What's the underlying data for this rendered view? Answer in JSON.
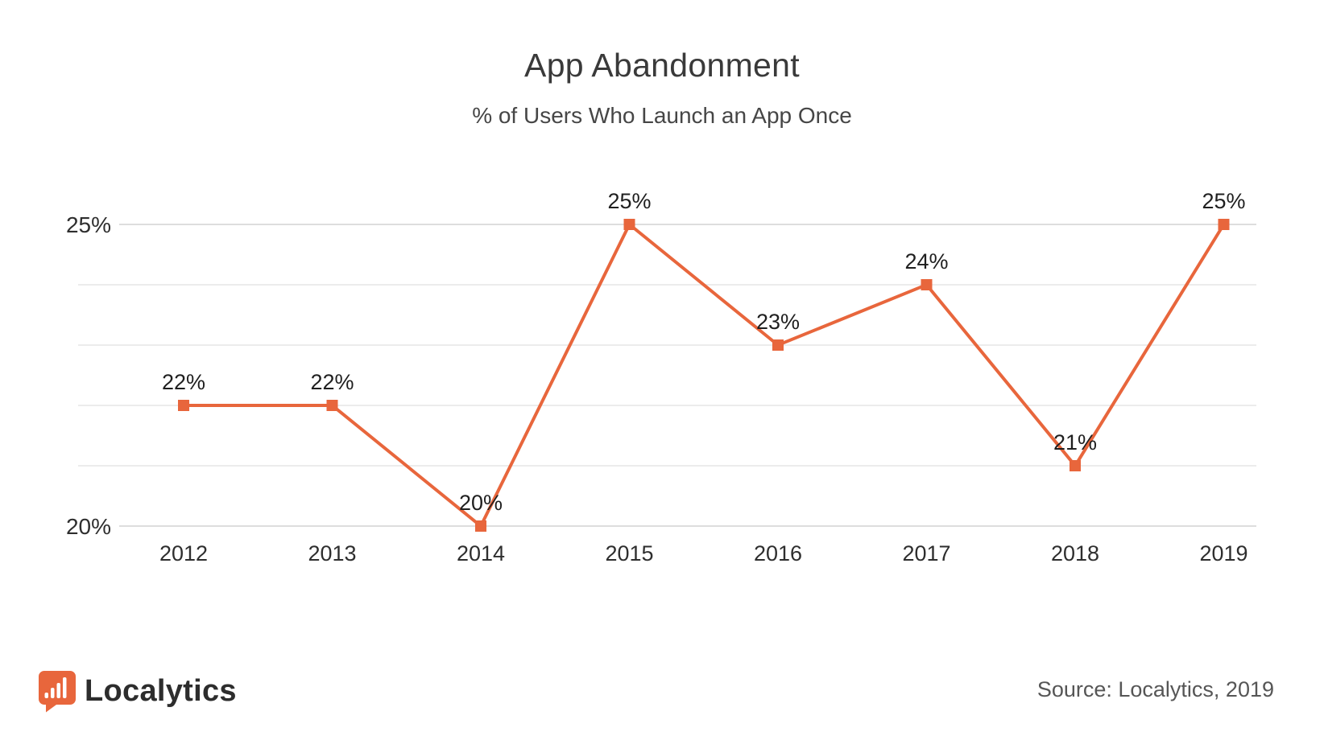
{
  "header": {
    "title": "App Abandonment",
    "subtitle": "% of Users Who Launch an App Once"
  },
  "chart_data": {
    "type": "line",
    "title": "App Abandonment",
    "subtitle": "% of Users Who Launch an App Once",
    "categories": [
      "2012",
      "2013",
      "2014",
      "2015",
      "2016",
      "2017",
      "2018",
      "2019"
    ],
    "series": [
      {
        "name": "% of users who launch an app once",
        "values": [
          22,
          22,
          20,
          25,
          23,
          24,
          21,
          25
        ]
      }
    ],
    "point_labels": [
      "22%",
      "22%",
      "20%",
      "25%",
      "23%",
      "24%",
      "21%",
      "25%"
    ],
    "ylim": [
      20,
      25
    ],
    "grid_interval": 1,
    "ytick_labels": {
      "25": "25%",
      "20": "20%"
    },
    "grid": true,
    "legend": "none",
    "marker": "square",
    "line_color": "#e8663c"
  },
  "footer": {
    "logo_text": "Localytics",
    "source": "Source: Localytics, 2019"
  },
  "colors": {
    "accent": "#e8663c",
    "grid_light": "#ececec",
    "grid_labeled": "#dddddd",
    "axis_text": "#2e2e2e",
    "point_label_text": "#1f1f1f",
    "title_text": "#3a3a3a",
    "source_text": "#565656",
    "logo_bar": "#ffffff"
  }
}
